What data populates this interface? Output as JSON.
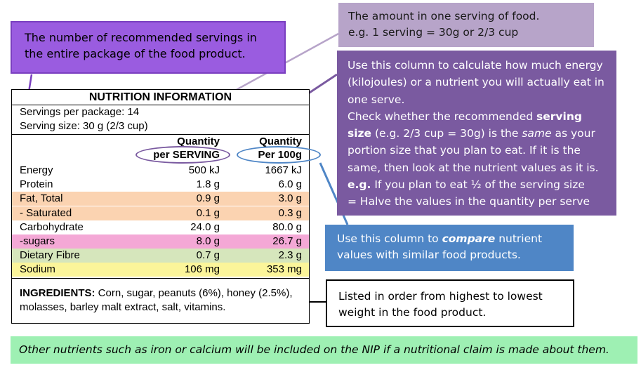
{
  "callouts": {
    "servings_package": "The number of recommended servings in the entire package of the food product.",
    "serving_amount_line1": "The amount in one serving of food.",
    "serving_amount_line2": "e.g. 1 serving = 30g or 2/3 cup",
    "per_serving": {
      "p1": "Use this column to calculate how much energy (kilojoules) or a nutrient you will actually eat in one serve.",
      "p2_a": "Check whether the recommended ",
      "p2_b": "serving size",
      "p2_c": " (e.g. 2/3 cup = 30g) is the ",
      "p2_d": "same",
      "p2_e": " as your portion size that you plan to eat. If it is the same, then look at the nutrient values as it is.",
      "p3_a": "e.g.",
      "p3_b": " If you plan to eat ½ of the serving size",
      "p4": "=  Halve the values in the quantity per serve"
    },
    "per_100g_a": "Use this column to ",
    "per_100g_b": "compare",
    "per_100g_c": " nutrient values with similar food products.",
    "ingredients_order": "Listed in order from highest to lowest weight in the food product.",
    "footer": "Other nutrients such as iron or calcium will be included on the NIP if a nutritional claim is made about them."
  },
  "nip": {
    "title": "NUTRITION INFORMATION",
    "servings_per_package": "Servings per package: 14",
    "serving_size": "Serving size: 30 g (2/3 cup)",
    "col1_line1": "Quantity",
    "col1_line2": "per SERVING",
    "col2_line1": "Quantity",
    "col2_line2": "Per 100g",
    "rows": [
      {
        "label": "Energy",
        "per_serving": "500 kJ",
        "per_100g": "1667 kJ",
        "color": "#ffffff"
      },
      {
        "label": "Protein",
        "per_serving": "1.8 g",
        "per_100g": "6.0 g",
        "color": "#ffffff"
      },
      {
        "label": "Fat, Total",
        "per_serving": "0.9 g",
        "per_100g": "3.0 g",
        "color": "#fbd3b1"
      },
      {
        "label": "- Saturated",
        "per_serving": "0.1 g",
        "per_100g": "0.3 g",
        "color": "#fbd3b1"
      },
      {
        "label": "Carbohydrate",
        "per_serving": "24.0 g",
        "per_100g": "80.0 g",
        "color": "#ffffff"
      },
      {
        "label": "-sugars",
        "per_serving": "8.0 g",
        "per_100g": "26.7 g",
        "color": "#f4a8d6"
      },
      {
        "label": "Dietary Fibre",
        "per_serving": "0.7 g",
        "per_100g": "2.3 g",
        "color": "#d6e6bc"
      },
      {
        "label": "Sodium",
        "per_serving": "106 mg",
        "per_100g": "353 mg",
        "color": "#fbf59a"
      }
    ],
    "ingredients_label": "INGREDIENTS:",
    "ingredients_text": " Corn, sugar, peanuts (6%), honey (2.5%), molasses, barley malt extract, salt, vitamins."
  },
  "colors": {
    "servings_box": "#9a5ce0",
    "serving_amount_box": "#b7a4c9",
    "per_serving_box": "#7a5aa0",
    "per_100g_box": "#4f86c6",
    "footer_box": "#9ef0b3"
  }
}
